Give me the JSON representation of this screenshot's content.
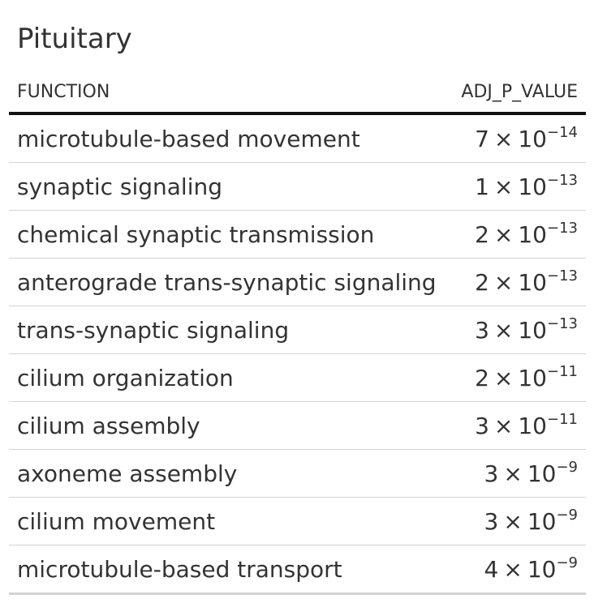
{
  "table": {
    "title": "Pituitary",
    "headers": {
      "function": "FUNCTION",
      "adj_p_value": "ADJ_P_VALUE"
    },
    "rows": [
      {
        "function": "microtubule-based movement",
        "mantissa": "7",
        "times": "×",
        "base": "10",
        "exponent": "−14"
      },
      {
        "function": "synaptic signaling",
        "mantissa": "1",
        "times": "×",
        "base": "10",
        "exponent": "−13"
      },
      {
        "function": "chemical synaptic transmission",
        "mantissa": "2",
        "times": "×",
        "base": "10",
        "exponent": "−13"
      },
      {
        "function": "anterograde trans-synaptic signaling",
        "mantissa": "2",
        "times": "×",
        "base": "10",
        "exponent": "−13"
      },
      {
        "function": "trans-synaptic signaling",
        "mantissa": "3",
        "times": "×",
        "base": "10",
        "exponent": "−13"
      },
      {
        "function": "cilium organization",
        "mantissa": "2",
        "times": "×",
        "base": "10",
        "exponent": "−11"
      },
      {
        "function": "cilium assembly",
        "mantissa": "3",
        "times": "×",
        "base": "10",
        "exponent": "−11"
      },
      {
        "function": "axoneme assembly",
        "mantissa": "3",
        "times": "×",
        "base": "10",
        "exponent": "−9"
      },
      {
        "function": "cilium movement",
        "mantissa": "3",
        "times": "×",
        "base": "10",
        "exponent": "−9"
      },
      {
        "function": "microtubule-based transport",
        "mantissa": "4",
        "times": "×",
        "base": "10",
        "exponent": "−9"
      }
    ]
  }
}
